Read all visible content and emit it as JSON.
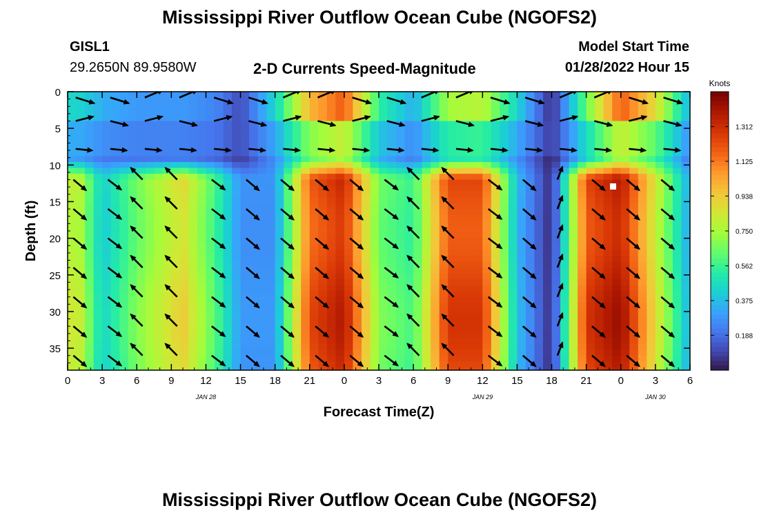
{
  "header": {
    "title": "Mississippi River Outflow Ocean Cube (NGOFS2)",
    "station_id": "GISL1",
    "station_coords": "29.2650N  89.9580W",
    "variable_title": "2-D Currents Speed-Magnitude",
    "model_start_label": "Model Start Time",
    "model_start_value": "01/28/2022 Hour 15"
  },
  "footer": {
    "title": "Mississippi River Outflow Ocean Cube (NGOFS2)"
  },
  "chart_data": {
    "type": "heatmap",
    "title": "2-D Currents Speed-Magnitude",
    "xlabel": "Forecast Time(Z)",
    "ylabel": "Depth (ft)",
    "x_unit": "hours since JAN 28 00Z",
    "x_range": [
      0,
      54
    ],
    "y_range": [
      0,
      38
    ],
    "y_inverted": true,
    "x_ticks": [
      0,
      3,
      6,
      9,
      12,
      15,
      18,
      21,
      24,
      27,
      30,
      33,
      36,
      39,
      42,
      45,
      48,
      51,
      54
    ],
    "x_tick_labels": [
      "0",
      "3",
      "6",
      "9",
      "12",
      "15",
      "18",
      "21",
      "0",
      "3",
      "6",
      "9",
      "12",
      "15",
      "18",
      "21",
      "0",
      "3",
      "6"
    ],
    "y_ticks": [
      0,
      5,
      10,
      15,
      20,
      25,
      30,
      35
    ],
    "y_tick_labels": [
      "0",
      "5",
      "10",
      "15",
      "20",
      "25",
      "30",
      "35"
    ],
    "date_labels": [
      {
        "x": 12,
        "text": "JAN 28"
      },
      {
        "x": 36,
        "text": "JAN 29"
      },
      {
        "x": 51,
        "text": "JAN 30"
      }
    ],
    "colorbar": {
      "unit": "Knots",
      "range": [
        0,
        1.5
      ],
      "ticks": [
        0.188,
        0.375,
        0.562,
        0.75,
        0.938,
        1.125,
        1.312
      ],
      "tick_labels": [
        "0.188",
        "0.375",
        "0.562",
        "0.750",
        "0.938",
        "1.125",
        "1.312"
      ]
    },
    "surface_speed_knots": [
      {
        "x": 1,
        "speed": 0.45
      },
      {
        "x": 3,
        "speed": 0.35
      },
      {
        "x": 6,
        "speed": 0.3
      },
      {
        "x": 10,
        "speed": 0.3
      },
      {
        "x": 13,
        "speed": 0.25
      },
      {
        "x": 15,
        "speed": 0.12
      },
      {
        "x": 18,
        "speed": 0.45
      },
      {
        "x": 21,
        "speed": 1.0
      },
      {
        "x": 24,
        "speed": 1.2
      },
      {
        "x": 27,
        "speed": 0.55
      },
      {
        "x": 30,
        "speed": 0.35
      },
      {
        "x": 33,
        "speed": 0.75
      },
      {
        "x": 36,
        "speed": 0.8
      },
      {
        "x": 39,
        "speed": 0.45
      },
      {
        "x": 42,
        "speed": 0.05
      },
      {
        "x": 45,
        "speed": 0.65
      },
      {
        "x": 48,
        "speed": 1.2
      },
      {
        "x": 51,
        "speed": 0.9
      },
      {
        "x": 54,
        "speed": 0.35
      }
    ],
    "bottom_layer_speed_knots": [
      {
        "x": 1,
        "speed": 0.85
      },
      {
        "x": 3,
        "speed": 0.45
      },
      {
        "x": 6,
        "speed": 0.7
      },
      {
        "x": 10,
        "speed": 0.95
      },
      {
        "x": 13,
        "speed": 0.6
      },
      {
        "x": 15,
        "speed": 0.3
      },
      {
        "x": 18,
        "speed": 0.3
      },
      {
        "x": 21,
        "speed": 1.25
      },
      {
        "x": 24,
        "speed": 1.4
      },
      {
        "x": 27,
        "speed": 0.7
      },
      {
        "x": 30,
        "speed": 0.6
      },
      {
        "x": 33,
        "speed": 1.3
      },
      {
        "x": 36,
        "speed": 1.3
      },
      {
        "x": 39,
        "speed": 0.4
      },
      {
        "x": 42,
        "speed": 0.05
      },
      {
        "x": 45,
        "speed": 1.3
      },
      {
        "x": 48,
        "speed": 1.45
      },
      {
        "x": 51,
        "speed": 0.9
      },
      {
        "x": 54,
        "speed": 0.35
      }
    ],
    "vector_field": "black arrows showing current direction every ~3 h at depths ~0.5, 3.5, 4.5, 7.5 and 12-38 ft"
  },
  "colors": {
    "palette": [
      "#30123b",
      "#4145ab",
      "#4675ed",
      "#39a2fc",
      "#1bcfd4",
      "#24eca6",
      "#61fc6c",
      "#a4fc3b",
      "#d1e834",
      "#f3c63a",
      "#fe9b2d",
      "#f36315",
      "#d93806",
      "#b11901",
      "#7a0402"
    ],
    "arrow": "#000000"
  }
}
